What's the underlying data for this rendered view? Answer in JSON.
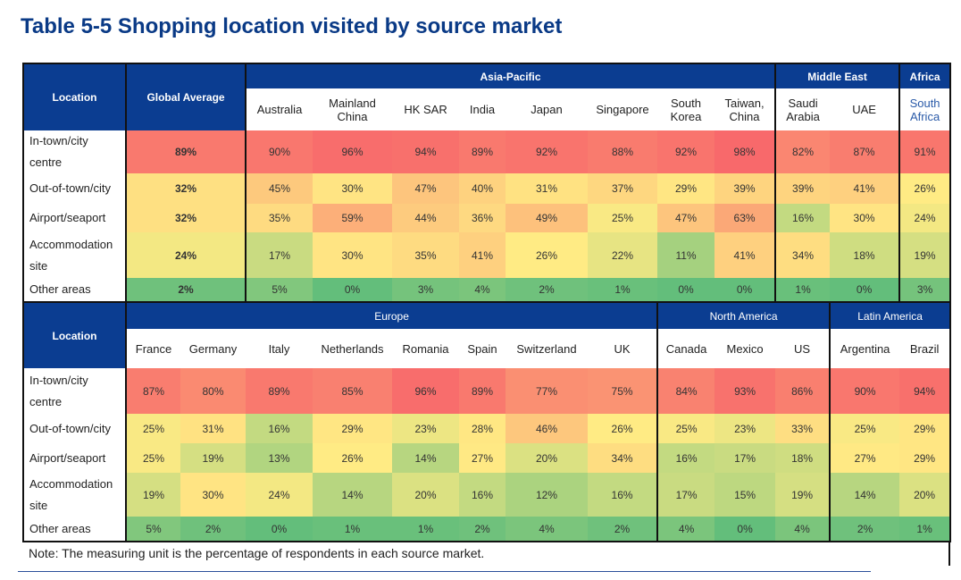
{
  "title": "Table 5-5 Shopping location visited by source market",
  "tables": [
    {
      "location_header": "Location",
      "average_header": "Global Average",
      "groups": [
        {
          "name": "Asia-Pacific",
          "columns": [
            "Australia",
            "Mainland China",
            "HK SAR",
            "India",
            "Japan",
            "Singapore",
            "South Korea",
            "Taiwan, China"
          ]
        },
        {
          "name": "Middle East",
          "columns": [
            "Saudi Arabia",
            "UAE"
          ]
        },
        {
          "name": "Africa",
          "columns": [
            "South Africa"
          ]
        }
      ],
      "rows": [
        {
          "label": "In-town/city centre",
          "average": "89%",
          "values": [
            "90%",
            "96%",
            "94%",
            "89%",
            "92%",
            "88%",
            "92%",
            "98%",
            "82%",
            "87%",
            "91%"
          ]
        },
        {
          "label": "Out-of-town/city",
          "average": "32%",
          "values": [
            "45%",
            "30%",
            "47%",
            "40%",
            "31%",
            "37%",
            "29%",
            "39%",
            "39%",
            "41%",
            "26%"
          ]
        },
        {
          "label": "Airport/seaport",
          "average": "32%",
          "values": [
            "35%",
            "59%",
            "44%",
            "36%",
            "49%",
            "25%",
            "47%",
            "63%",
            "16%",
            "30%",
            "24%"
          ]
        },
        {
          "label": "Accommodation site",
          "average": "24%",
          "values": [
            "17%",
            "30%",
            "35%",
            "41%",
            "26%",
            "22%",
            "11%",
            "41%",
            "34%",
            "18%",
            "19%"
          ]
        },
        {
          "label": "Other areas",
          "average": "2%",
          "values": [
            "5%",
            "0%",
            "3%",
            "4%",
            "2%",
            "1%",
            "0%",
            "0%",
            "1%",
            "0%",
            "3%"
          ]
        }
      ]
    },
    {
      "location_header": "Location",
      "groups": [
        {
          "name": "Europe",
          "columns": [
            "France",
            "Germany",
            "Italy",
            "Netherlands",
            "Romania",
            "Spain",
            "Switzerland",
            "UK"
          ]
        },
        {
          "name": "North America",
          "columns": [
            "Canada",
            "Mexico",
            "US"
          ]
        },
        {
          "name": "Latin America",
          "columns": [
            "Argentina",
            "Brazil"
          ]
        }
      ],
      "rows": [
        {
          "label": "In-town/city centre",
          "values": [
            "87%",
            "80%",
            "89%",
            "85%",
            "96%",
            "89%",
            "77%",
            "75%",
            "84%",
            "93%",
            "86%",
            "90%",
            "94%"
          ]
        },
        {
          "label": "Out-of-town/city",
          "values": [
            "25%",
            "31%",
            "16%",
            "29%",
            "23%",
            "28%",
            "46%",
            "26%",
            "25%",
            "23%",
            "33%",
            "25%",
            "29%"
          ]
        },
        {
          "label": "Airport/seaport",
          "values": [
            "25%",
            "19%",
            "13%",
            "26%",
            "14%",
            "27%",
            "20%",
            "34%",
            "16%",
            "17%",
            "18%",
            "27%",
            "29%"
          ]
        },
        {
          "label": "Accommodation site",
          "values": [
            "19%",
            "30%",
            "24%",
            "14%",
            "20%",
            "16%",
            "12%",
            "16%",
            "17%",
            "15%",
            "19%",
            "14%",
            "20%"
          ]
        },
        {
          "label": "Other areas",
          "values": [
            "5%",
            "2%",
            "0%",
            "1%",
            "1%",
            "2%",
            "4%",
            "2%",
            "4%",
            "0%",
            "4%",
            "2%",
            "1%"
          ]
        }
      ]
    }
  ],
  "note": "Note: The measuring unit is the percentage of respondents in each source market."
}
